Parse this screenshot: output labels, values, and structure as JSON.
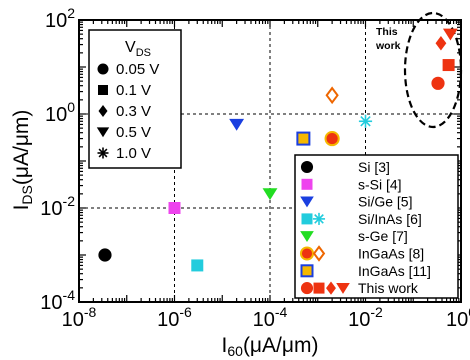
{
  "chart_data": {
    "type": "scatter",
    "xscale": "log",
    "yscale": "log",
    "xlabel": {
      "main": "I",
      "sub": "60",
      "rest": "(μA/μm)"
    },
    "ylabel": {
      "main": "I",
      "sub": "DS",
      "rest": "(μA/μm)"
    },
    "xlim": [
      1e-08,
      1
    ],
    "ylim": [
      0.0001,
      100
    ],
    "grid": true,
    "x_ticks": [
      {
        "value": 1e-08,
        "base": "10",
        "exp": "-8"
      },
      {
        "value": 1e-06,
        "base": "10",
        "exp": "-6"
      },
      {
        "value": 0.0001,
        "base": "10",
        "exp": "-4"
      },
      {
        "value": 0.01,
        "base": "10",
        "exp": "-2"
      },
      {
        "value": 1,
        "base": "10",
        "exp": "0"
      }
    ],
    "y_ticks": [
      {
        "value": 0.0001,
        "base": "10",
        "exp": "-4"
      },
      {
        "value": 0.01,
        "base": "10",
        "exp": "-2"
      },
      {
        "value": 1,
        "base": "10",
        "exp": "0"
      },
      {
        "value": 100,
        "base": "10",
        "exp": "2"
      }
    ],
    "vds_legend": {
      "title_main": "V",
      "title_sub": "DS",
      "entries": [
        {
          "marker": "circle",
          "label": "0.05 V"
        },
        {
          "marker": "square",
          "label": "0.1 V"
        },
        {
          "marker": "diamond",
          "label": "0.3 V"
        },
        {
          "marker": "triangle-down",
          "label": "0.5 V"
        },
        {
          "marker": "asterisk",
          "label": "1.0 V"
        }
      ]
    },
    "series_legend": [
      {
        "label": "Si [3]",
        "markers": [
          {
            "shape": "circle",
            "fill": "#000000"
          }
        ]
      },
      {
        "label": "s-Si [4]",
        "markers": [
          {
            "shape": "square",
            "fill": "#ee44ee"
          }
        ]
      },
      {
        "label": "Si/Ge [5]",
        "markers": [
          {
            "shape": "triangle-down",
            "fill": "#1a3fe0"
          }
        ]
      },
      {
        "label": "Si/InAs [6]",
        "markers": [
          {
            "shape": "square",
            "fill": "#22ccdd"
          },
          {
            "shape": "asterisk",
            "fill": "#22ccdd"
          }
        ]
      },
      {
        "label": "s-Ge [7]",
        "markers": [
          {
            "shape": "triangle-down",
            "fill": "#22dd22"
          }
        ]
      },
      {
        "label": "InGaAs [8]",
        "markers": [
          {
            "shape": "circle",
            "fill": "#ee3311",
            "stroke": "#f5b800"
          },
          {
            "shape": "diamond",
            "fill": "#ffffff",
            "stroke": "#ee6600"
          }
        ]
      },
      {
        "label": "InGaAs [11]",
        "markers": [
          {
            "shape": "square",
            "fill": "#f5b800",
            "stroke": "#1a3fe0"
          }
        ]
      },
      {
        "label": "This work",
        "markers": [
          {
            "shape": "circle",
            "fill": "#ee3311"
          },
          {
            "shape": "square",
            "fill": "#ee3311"
          },
          {
            "shape": "diamond",
            "fill": "#ee3311"
          },
          {
            "shape": "triangle-down",
            "fill": "#ee3311"
          }
        ]
      }
    ],
    "points": [
      {
        "series": "Si [3]",
        "shape": "circle",
        "x": 3.5e-08,
        "y": 0.001,
        "fill": "#000000"
      },
      {
        "series": "s-Si [4]",
        "shape": "square",
        "x": 1e-06,
        "y": 0.01,
        "fill": "#ee44ee"
      },
      {
        "series": "Si/Ge [5]",
        "shape": "triangle-down",
        "x": 2e-05,
        "y": 0.6,
        "fill": "#1a3fe0"
      },
      {
        "series": "Si/InAs [6]",
        "shape": "square",
        "x": 3e-06,
        "y": 0.0006,
        "fill": "#22ccdd"
      },
      {
        "series": "Si/InAs [6]",
        "shape": "asterisk",
        "x": 0.01,
        "y": 0.7,
        "fill": "#22ccdd"
      },
      {
        "series": "s-Ge [7]",
        "shape": "triangle-down",
        "x": 0.0001,
        "y": 0.02,
        "fill": "#22dd22"
      },
      {
        "series": "InGaAs [8]",
        "shape": "diamond",
        "x": 0.002,
        "y": 2.5,
        "fill": "#ffffff",
        "stroke": "#ee6600"
      },
      {
        "series": "InGaAs [8]",
        "shape": "circle",
        "x": 0.002,
        "y": 0.3,
        "fill": "#ee3311",
        "stroke": "#f5b800"
      },
      {
        "series": "InGaAs [11]",
        "shape": "square",
        "x": 0.0005,
        "y": 0.3,
        "fill": "#f5b800",
        "stroke": "#1a3fe0"
      },
      {
        "series": "This work",
        "shape": "circle",
        "x": 0.33,
        "y": 4.5,
        "fill": "#ee3311"
      },
      {
        "series": "This work",
        "shape": "square",
        "x": 0.55,
        "y": 11,
        "fill": "#ee3311"
      },
      {
        "series": "This work",
        "shape": "diamond",
        "x": 0.38,
        "y": 32,
        "fill": "#ee3311"
      },
      {
        "series": "This work",
        "shape": "triangle-down",
        "x": 0.6,
        "y": 50,
        "fill": "#ee3311"
      }
    ],
    "annotation": {
      "lines": [
        "This",
        "work"
      ]
    }
  }
}
